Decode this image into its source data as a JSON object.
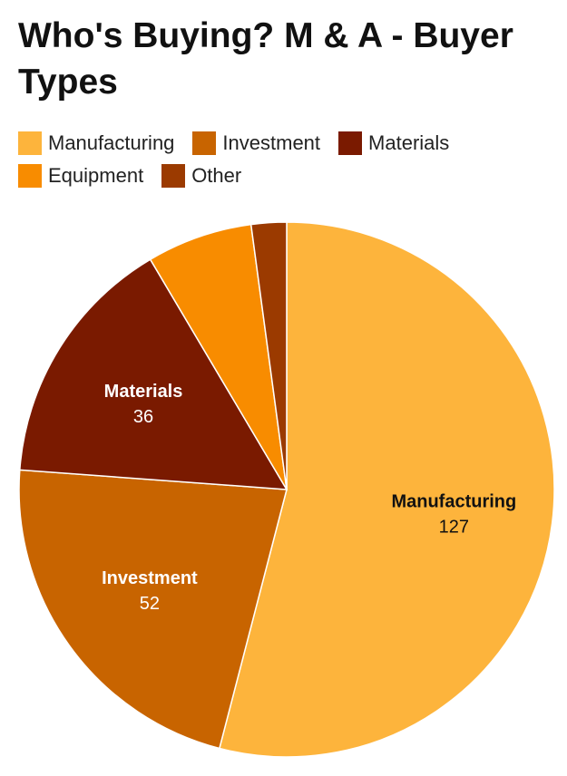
{
  "chart_data": {
    "type": "pie",
    "title": "Who's Buying? M & A - Buyer Types",
    "legend_position": "top-left",
    "categories": [
      "Manufacturing",
      "Investment",
      "Materials",
      "Equipment",
      "Other"
    ],
    "values": [
      127,
      52,
      36,
      15,
      5
    ],
    "colors": [
      "#FDB43C",
      "#C86400",
      "#7A1A00",
      "#F88C00",
      "#9B3A00"
    ],
    "data_labels": [
      {
        "label": "Manufacturing",
        "value": "127"
      },
      {
        "label": "Investment",
        "value": "52"
      },
      {
        "label": "Materials",
        "value": "36"
      }
    ]
  }
}
